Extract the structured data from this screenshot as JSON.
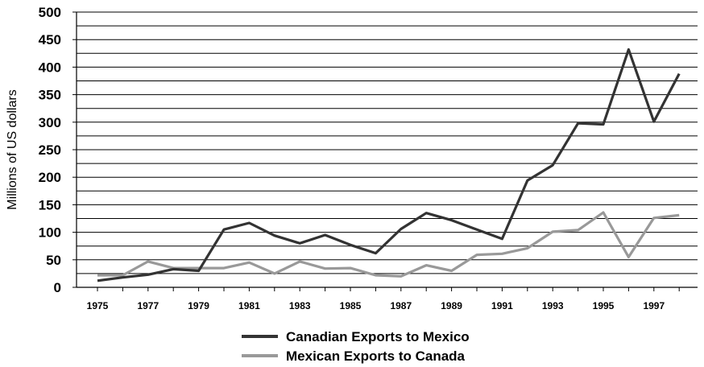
{
  "chart_data": {
    "type": "line",
    "title": "",
    "xlabel": "",
    "ylabel": "Millions of US dollars",
    "ylim": [
      0,
      500
    ],
    "yticks": [
      "0",
      "50",
      "100",
      "150",
      "200",
      "250",
      "300",
      "350",
      "400",
      "450",
      "500"
    ],
    "xticks": [
      "1975",
      "1977",
      "1979",
      "1981",
      "1983",
      "1985",
      "1987",
      "1989",
      "1991",
      "1993",
      "1995",
      "1997"
    ],
    "x": [
      1975,
      1976,
      1977,
      1978,
      1979,
      1980,
      1981,
      1982,
      1983,
      1984,
      1985,
      1986,
      1987,
      1988,
      1989,
      1990,
      1991,
      1992,
      1993,
      1994,
      1995,
      1996,
      1997,
      1998
    ],
    "grid": true,
    "legend_position": "bottom",
    "series": [
      {
        "name": "Canadian Exports to Mexico",
        "color": "#333333",
        "values": [
          12,
          18,
          23,
          33,
          30,
          105,
          117,
          94,
          80,
          95,
          77,
          62,
          106,
          135,
          122,
          105,
          88,
          194,
          222,
          298,
          296,
          432,
          301,
          388
        ]
      },
      {
        "name": "Mexican Exports to Canada",
        "color": "#999999",
        "values": [
          22,
          22,
          47,
          35,
          35,
          35,
          45,
          25,
          47,
          34,
          35,
          22,
          20,
          40,
          30,
          59,
          61,
          71,
          101,
          104,
          136,
          55,
          126,
          131
        ]
      }
    ]
  }
}
